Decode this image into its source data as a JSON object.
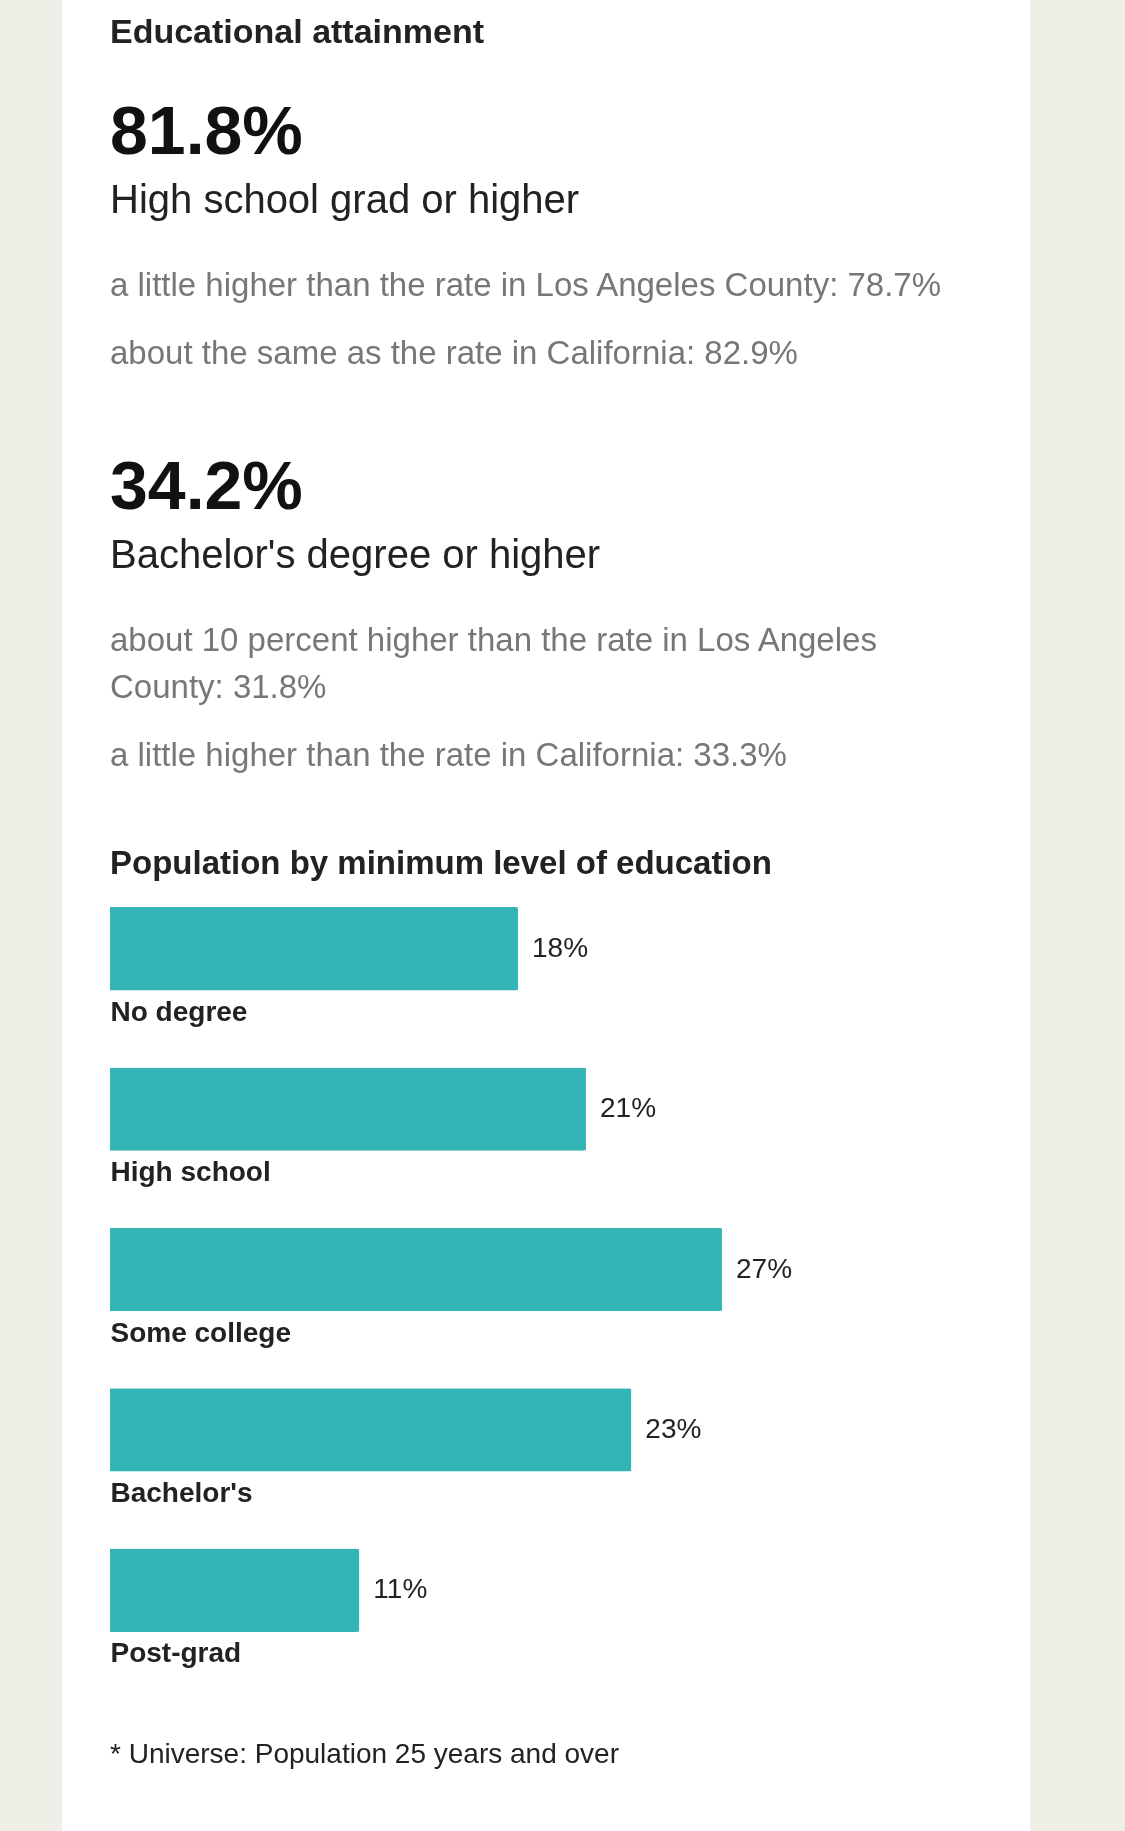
{
  "chart_data": [
    {
      "type": "other",
      "title": "Educational attainment",
      "annotations": [
        "81.8%",
        "High school grad or higher",
        "a little higher than the rate in Los Angeles County: 78.7%",
        "about the same as the rate in California: 82.9%",
        "34.2%",
        "Bachelor's degree or higher",
        "about 10 percent higher than the rate in Los Angeles County: 31.8%",
        "a little higher than the rate in California: 33.3%"
      ]
    },
    {
      "type": "bar",
      "orientation": "horizontal",
      "title": "Population by minimum level of education",
      "categories": [
        "No degree",
        "High school",
        "Some college",
        "Bachelor's",
        "Post-grad"
      ],
      "values": [
        18,
        21,
        27,
        23,
        11
      ],
      "value_labels": [
        "18%",
        "21%",
        "27%",
        "23%",
        "11%"
      ],
      "color": "#33b5b5",
      "annotations": [
        "* Universe: Population 25 years and over"
      ]
    }
  ]
}
